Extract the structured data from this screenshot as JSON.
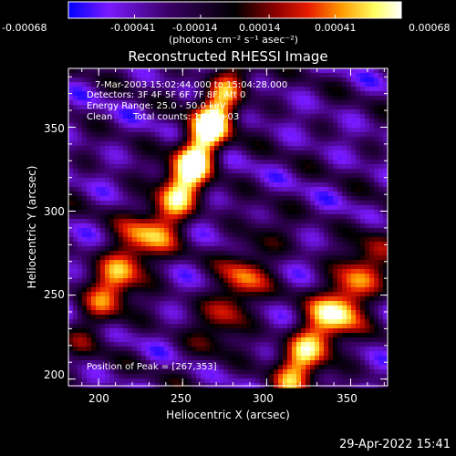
{
  "colorbar": {
    "tick_labels": [
      "-0.00068",
      "-0.00041",
      "-0.00014",
      "0.00014",
      "0.00041",
      "0.00068"
    ],
    "units_line": "(photons cm⁻² s⁻¹ asec⁻²)"
  },
  "chart_data": {
    "type": "heatmap",
    "title": "Reconstructed RHESSI Image",
    "xlabel": "Heliocentric X (arcsec)",
    "ylabel": "Heliocentric Y (arcsec)",
    "xlim": [
      182,
      372
    ],
    "ylim": [
      196,
      385
    ],
    "x_ticks": [
      200,
      250,
      300,
      350
    ],
    "y_ticks": [
      200,
      250,
      300,
      350
    ],
    "color_range": [
      -0.00068,
      0.00068
    ],
    "colormap": [
      "#0000ff",
      "#7a1aff",
      "#3b0066",
      "#000000",
      "#8a0000",
      "#e81a00",
      "#ff9a00",
      "#ffff60",
      "#ffffff"
    ],
    "sources": [
      {
        "x": 267,
        "y": 353,
        "peak": 0.00068
      },
      {
        "x": 248,
        "y": 310,
        "peak": 0.0005
      },
      {
        "x": 212,
        "y": 262,
        "peak": 0.00058
      },
      {
        "x": 282,
        "y": 252,
        "peak": 0.0005
      },
      {
        "x": 350,
        "y": 250,
        "peak": 0.0006
      },
      {
        "x": 320,
        "y": 212,
        "peak": 0.00052
      }
    ],
    "annotations": {
      "time_range": "7-Mar-2003 15:02:44.000 to 15:04:28.000",
      "detectors": "Detectors: 3F 4F 5F 6F 7F 8F, Att 0",
      "energy": "Energy Range: 25.0 - 50.0 keV",
      "method": "Clean",
      "counts": "Total counts: 1.26E+03",
      "peak": "Position of Peak = [267,353]"
    }
  },
  "footer_date": "29-Apr-2022 15:41"
}
